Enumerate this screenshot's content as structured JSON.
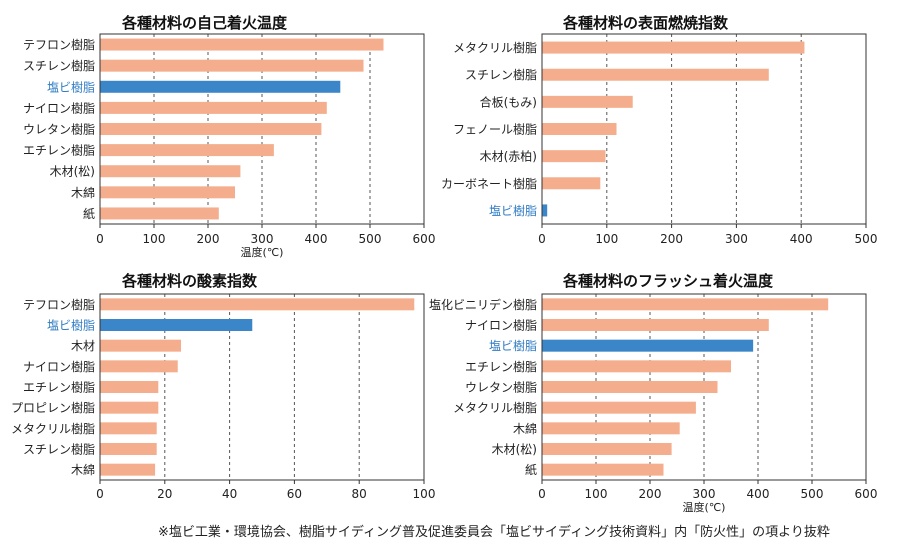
{
  "footnote": "※塩ビ工業・環境協会、樹脂サイディング普及促進委員会「塩ビサイディング技術資料」内「防火性」の項より抜粋",
  "colors": {
    "bar": "#f4ae8d",
    "highlight": "#3a86c9",
    "highlight_text": "#2f7cc4",
    "axis": "#333333",
    "grid": "#555555"
  },
  "chart_data": [
    {
      "type": "bar",
      "orientation": "horizontal",
      "title": "各種材料の自己着火温度",
      "xlabel": "温度(℃)",
      "xlim": [
        0,
        600
      ],
      "ticks": [
        "0",
        "100",
        "200",
        "300",
        "400",
        "500",
        "600"
      ],
      "categories": [
        "テフロン樹脂",
        "スチレン樹脂",
        "塩ビ樹脂",
        "ナイロン樹脂",
        "ウレタン樹脂",
        "エチレン樹脂",
        "木材(松)",
        "木綿",
        "紙"
      ],
      "values": [
        525,
        488,
        445,
        420,
        410,
        322,
        260,
        250,
        220
      ],
      "highlight": "塩ビ樹脂",
      "grid": true
    },
    {
      "type": "bar",
      "orientation": "horizontal",
      "title": "各種材料の表面燃焼指数",
      "xlabel": "",
      "xlim": [
        0,
        500
      ],
      "ticks": [
        "0",
        "100",
        "200",
        "300",
        "400",
        "500"
      ],
      "categories": [
        "メタクリル樹脂",
        "スチレン樹脂",
        "合板(もみ)",
        "フェノール樹脂",
        "木材(赤柏)",
        "カーボネート樹脂",
        "塩ビ樹脂"
      ],
      "values": [
        405,
        350,
        140,
        115,
        98,
        90,
        8
      ],
      "highlight": "塩ビ樹脂",
      "grid": true
    },
    {
      "type": "bar",
      "orientation": "horizontal",
      "title": "各種材料の酸素指数",
      "xlabel": "",
      "xlim": [
        0,
        100
      ],
      "ticks": [
        "0",
        "20",
        "40",
        "60",
        "80",
        "100"
      ],
      "categories": [
        "テフロン樹脂",
        "塩ビ樹脂",
        "木材",
        "ナイロン樹脂",
        "エチレン樹脂",
        "プロピレン樹脂",
        "メタクリル樹脂",
        "スチレン樹脂",
        "木綿"
      ],
      "values": [
        97,
        47,
        25,
        24,
        18,
        18,
        17.5,
        17.5,
        17
      ],
      "highlight": "塩ビ樹脂",
      "grid": true
    },
    {
      "type": "bar",
      "orientation": "horizontal",
      "title": "各種材料のフラッシュ着火温度",
      "xlabel": "温度(℃)",
      "xlim": [
        0,
        600
      ],
      "ticks": [
        "0",
        "100",
        "200",
        "300",
        "400",
        "500",
        "600"
      ],
      "categories": [
        "塩化ビニリデン樹脂",
        "ナイロン樹脂",
        "塩ビ樹脂",
        "エチレン樹脂",
        "ウレタン樹脂",
        "メタクリル樹脂",
        "木綿",
        "木材(松)",
        "紙"
      ],
      "values": [
        530,
        420,
        391,
        350,
        325,
        285,
        255,
        240,
        225
      ],
      "highlight": "塩ビ樹脂",
      "grid": true
    }
  ]
}
